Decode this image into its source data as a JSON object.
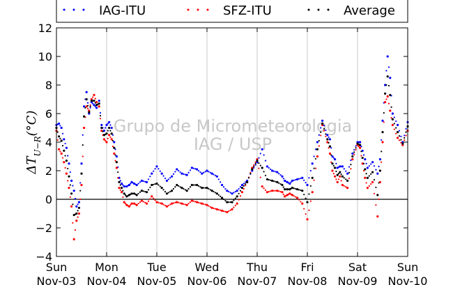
{
  "chart_data": {
    "type": "scatter",
    "ylabel": "ΔT_{U−R}(°C)",
    "ylabel_main": "ΔT",
    "ylabel_sub": "U−R",
    "ylabel_unit": "(°C)",
    "ylim": [
      -4,
      12
    ],
    "yticks": [
      -4,
      -2,
      0,
      2,
      4,
      6,
      8,
      10,
      12
    ],
    "xlim": [
      0,
      7
    ],
    "xticks": [
      {
        "day": "Sun",
        "date": "Nov-03"
      },
      {
        "day": "Mon",
        "date": "Nov-04"
      },
      {
        "day": "Tue",
        "date": "Nov-05"
      },
      {
        "day": "Wed",
        "date": "Nov-06"
      },
      {
        "day": "Thu",
        "date": "Nov-07"
      },
      {
        "day": "Fri",
        "date": "Nov-08"
      },
      {
        "day": "Sat",
        "date": "Nov-09"
      },
      {
        "day": "Sun",
        "date": "Nov-10"
      }
    ],
    "grid": "vertical",
    "zero_line": true,
    "legend_position": "top",
    "watermark": [
      "Grupo de Micrometeorologia",
      "IAG / USP"
    ],
    "series": [
      {
        "name": "IAG-ITU",
        "color": "#0000ff",
        "x": [
          0.0,
          0.05,
          0.1,
          0.15,
          0.2,
          0.25,
          0.3,
          0.35,
          0.4,
          0.45,
          0.5,
          0.55,
          0.6,
          0.65,
          0.7,
          0.75,
          0.8,
          0.85,
          0.9,
          0.95,
          1.0,
          1.05,
          1.1,
          1.15,
          1.2,
          1.25,
          1.3,
          1.35,
          1.4,
          1.45,
          1.5,
          1.55,
          1.6,
          1.7,
          1.8,
          1.9,
          2.0,
          2.1,
          2.2,
          2.3,
          2.4,
          2.5,
          2.6,
          2.7,
          2.8,
          2.9,
          3.0,
          3.1,
          3.2,
          3.3,
          3.4,
          3.5,
          3.6,
          3.7,
          3.8,
          3.9,
          4.0,
          4.1,
          4.2,
          4.3,
          4.4,
          4.5,
          4.55,
          4.6,
          4.65,
          4.7,
          4.8,
          4.9,
          5.0,
          5.1,
          5.2,
          5.3,
          5.4,
          5.45,
          5.5,
          5.55,
          5.6,
          5.65,
          5.7,
          5.8,
          5.9,
          6.0,
          6.05,
          6.1,
          6.15,
          6.2,
          6.3,
          6.4,
          6.45,
          6.5,
          6.55,
          6.6,
          6.65,
          6.7,
          6.8,
          6.9,
          7.0
        ],
        "y": [
          5.2,
          5.3,
          5.0,
          4.2,
          3.6,
          2.5,
          1.3,
          0.6,
          -0.5,
          -0.2,
          2.5,
          6.5,
          7.5,
          6.0,
          6.8,
          6.6,
          6.4,
          6.9,
          5.2,
          4.8,
          5.2,
          5.4,
          5.0,
          4.0,
          3.0,
          1.5,
          1.1,
          0.9,
          0.9,
          1.0,
          1.2,
          1.1,
          1.0,
          1.3,
          1.2,
          1.8,
          2.3,
          1.8,
          1.3,
          1.6,
          2.1,
          1.8,
          1.7,
          2.2,
          2.1,
          1.8,
          2.0,
          1.8,
          1.6,
          1.0,
          0.6,
          0.4,
          0.6,
          1.0,
          1.3,
          2.0,
          2.6,
          3.5,
          2.3,
          2.0,
          1.9,
          1.6,
          1.3,
          1.2,
          1.1,
          1.3,
          1.4,
          1.5,
          1.0,
          2.5,
          4.0,
          5.5,
          4.5,
          4.2,
          3.0,
          2.8,
          2.2,
          2.3,
          2.3,
          1.8,
          3.2,
          4.0,
          4.0,
          3.4,
          2.8,
          2.2,
          2.6,
          1.8,
          2.8,
          5.5,
          8.0,
          10.0,
          8.5,
          6.0,
          5.2,
          4.0,
          5.4
        ]
      },
      {
        "name": "SFZ-ITU",
        "color": "#ff0000",
        "x": [
          0.0,
          0.05,
          0.1,
          0.15,
          0.2,
          0.25,
          0.3,
          0.35,
          0.4,
          0.45,
          0.5,
          0.55,
          0.6,
          0.65,
          0.7,
          0.75,
          0.8,
          0.85,
          0.9,
          0.95,
          1.0,
          1.05,
          1.1,
          1.15,
          1.2,
          1.25,
          1.3,
          1.35,
          1.4,
          1.45,
          1.5,
          1.55,
          1.6,
          1.7,
          1.8,
          1.9,
          2.0,
          2.1,
          2.2,
          2.3,
          2.4,
          2.5,
          2.6,
          2.7,
          2.8,
          2.9,
          3.0,
          3.1,
          3.2,
          3.3,
          3.4,
          3.5,
          3.6,
          3.7,
          3.8,
          3.9,
          4.0,
          4.1,
          4.2,
          4.3,
          4.4,
          4.5,
          4.55,
          4.6,
          4.65,
          4.7,
          4.8,
          4.9,
          5.0,
          5.1,
          5.2,
          5.3,
          5.4,
          5.45,
          5.5,
          5.55,
          5.6,
          5.65,
          5.7,
          5.8,
          5.9,
          6.0,
          6.05,
          6.1,
          6.15,
          6.2,
          6.3,
          6.4,
          6.45,
          6.5,
          6.55,
          6.6,
          6.65,
          6.7,
          6.8,
          6.9,
          7.0
        ],
        "y": [
          4.8,
          3.5,
          3.2,
          2.6,
          1.8,
          0.8,
          -0.5,
          -2.8,
          -1.5,
          -1.0,
          1.0,
          5.0,
          6.5,
          6.2,
          7.0,
          7.3,
          6.8,
          6.5,
          4.8,
          4.2,
          4.0,
          4.5,
          4.2,
          3.2,
          2.2,
          0.8,
          0.5,
          -0.2,
          -0.4,
          -0.5,
          -0.3,
          -0.3,
          -0.4,
          -0.1,
          -0.3,
          0.2,
          -0.2,
          -0.3,
          -0.5,
          -0.3,
          -0.2,
          -0.3,
          -0.4,
          -0.1,
          -0.2,
          -0.3,
          -0.4,
          -0.6,
          -0.7,
          -0.8,
          -0.9,
          -0.7,
          -0.3,
          0.5,
          1.2,
          2.2,
          2.8,
          0.9,
          0.5,
          0.6,
          0.6,
          0.5,
          0.2,
          0.3,
          0.4,
          0.3,
          0.1,
          -0.3,
          -1.4,
          0.5,
          3.0,
          5.2,
          4.0,
          3.2,
          2.0,
          1.6,
          1.2,
          1.6,
          1.0,
          0.8,
          2.8,
          3.8,
          3.6,
          2.5,
          1.5,
          0.8,
          1.2,
          -1.2,
          1.2,
          4.0,
          6.8,
          7.2,
          6.2,
          5.2,
          4.3,
          3.8,
          4.8
        ]
      },
      {
        "name": "Average",
        "color": "#000000",
        "x": [
          0.0,
          0.05,
          0.1,
          0.15,
          0.2,
          0.25,
          0.3,
          0.35,
          0.4,
          0.45,
          0.5,
          0.55,
          0.6,
          0.65,
          0.7,
          0.75,
          0.8,
          0.85,
          0.9,
          0.95,
          1.0,
          1.05,
          1.1,
          1.15,
          1.2,
          1.25,
          1.3,
          1.35,
          1.4,
          1.45,
          1.5,
          1.55,
          1.6,
          1.7,
          1.8,
          1.9,
          2.0,
          2.1,
          2.2,
          2.3,
          2.4,
          2.5,
          2.6,
          2.7,
          2.8,
          2.9,
          3.0,
          3.1,
          3.2,
          3.3,
          3.4,
          3.5,
          3.6,
          3.7,
          3.8,
          3.9,
          4.0,
          4.1,
          4.2,
          4.3,
          4.4,
          4.5,
          4.55,
          4.6,
          4.65,
          4.7,
          4.8,
          4.9,
          5.0,
          5.1,
          5.2,
          5.3,
          5.4,
          5.45,
          5.5,
          5.55,
          5.6,
          5.65,
          5.7,
          5.8,
          5.9,
          6.0,
          6.05,
          6.1,
          6.15,
          6.2,
          6.3,
          6.4,
          6.45,
          6.5,
          6.55,
          6.6,
          6.65,
          6.7,
          6.8,
          6.9,
          7.0
        ],
        "y": [
          5.0,
          4.4,
          4.1,
          3.4,
          2.7,
          1.6,
          0.4,
          -1.1,
          -1.0,
          -0.6,
          1.8,
          5.8,
          7.0,
          6.1,
          6.9,
          6.9,
          6.6,
          6.7,
          5.0,
          4.5,
          4.6,
          5.0,
          4.6,
          3.6,
          2.6,
          1.2,
          0.8,
          0.4,
          0.2,
          0.3,
          0.4,
          0.4,
          0.3,
          0.6,
          0.5,
          1.0,
          1.1,
          0.8,
          0.4,
          0.6,
          1.0,
          0.8,
          0.6,
          1.0,
          1.0,
          0.8,
          0.8,
          0.6,
          0.4,
          0.1,
          -0.2,
          -0.2,
          0.2,
          0.8,
          1.2,
          2.1,
          2.7,
          2.2,
          1.4,
          1.3,
          1.2,
          1.0,
          0.7,
          0.7,
          0.7,
          0.8,
          0.7,
          0.6,
          -0.2,
          1.5,
          3.5,
          5.3,
          4.2,
          3.7,
          2.5,
          2.2,
          1.7,
          1.9,
          1.6,
          1.3,
          3.0,
          3.9,
          3.8,
          2.9,
          2.1,
          1.5,
          1.9,
          0.3,
          2.0,
          4.7,
          7.4,
          8.6,
          7.3,
          5.6,
          4.7,
          3.9,
          5.1
        ]
      }
    ]
  }
}
